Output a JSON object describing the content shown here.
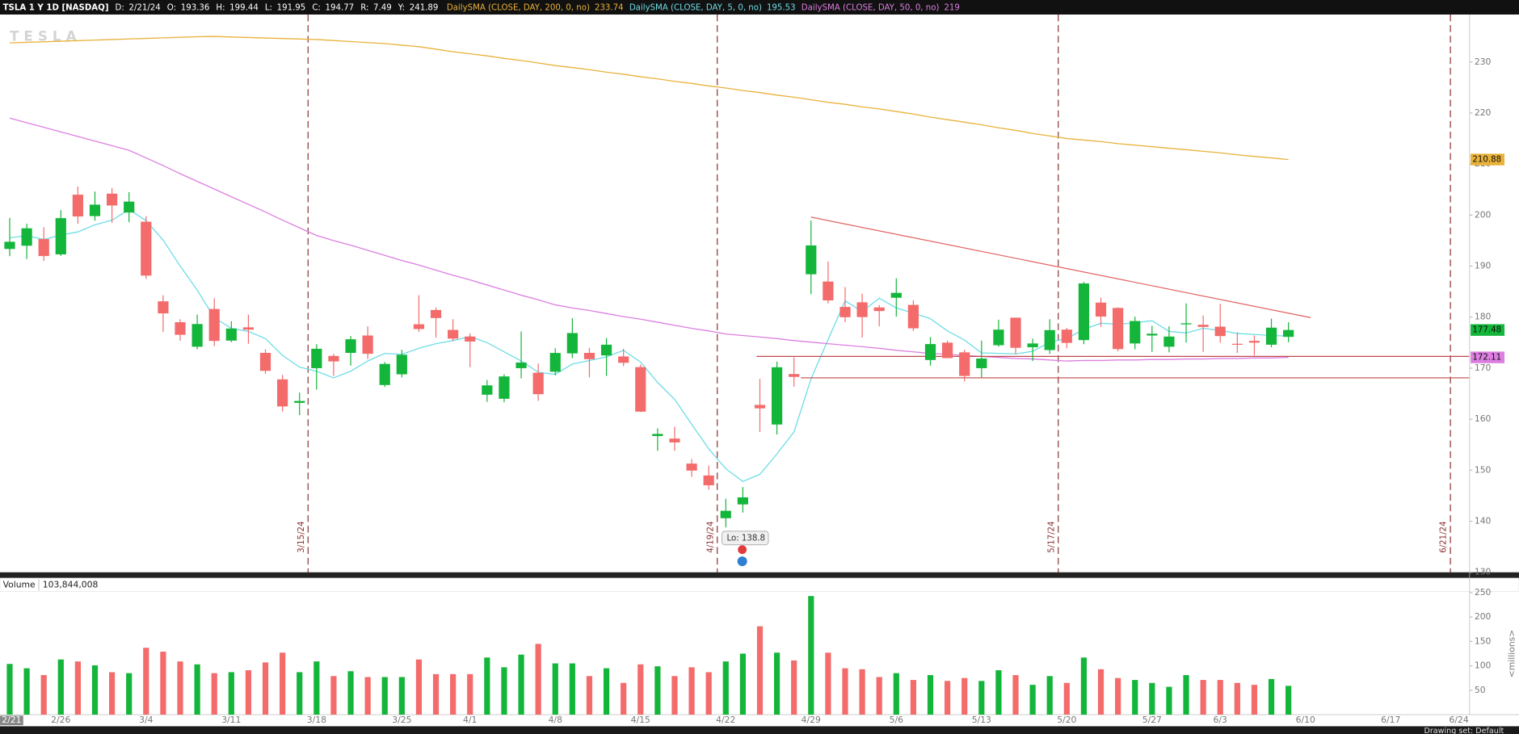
{
  "header": {
    "symbol": "TSLA 1 Y 1D [NASDAQ]",
    "date_label": "D:",
    "date": "2/21/24",
    "open_label": "O:",
    "high_label": "H:",
    "low_label": "L:",
    "close_label": "C:",
    "range": {
      "label": "R:",
      "value": 7.49
    },
    "y": {
      "label": "Y:",
      "value": 241.89
    }
  },
  "watermark": "TESLA",
  "chart_data": {
    "type": "candlestick",
    "title": "TSLA 1 Y 1D [NASDAQ]",
    "categories": [
      "2/21",
      null,
      null,
      "2/26",
      null,
      null,
      null,
      null,
      "3/4",
      null,
      null,
      null,
      null,
      "3/11",
      null,
      null,
      null,
      null,
      "3/18",
      null,
      null,
      null,
      null,
      "3/25",
      null,
      null,
      null,
      "4/1",
      null,
      null,
      null,
      null,
      "4/8",
      null,
      null,
      null,
      null,
      "4/15",
      null,
      null,
      null,
      null,
      "4/22",
      null,
      null,
      null,
      null,
      "4/29",
      null,
      null,
      null,
      null,
      "5/6",
      null,
      null,
      null,
      null,
      "5/13",
      null,
      null,
      null,
      null,
      "5/20",
      null,
      null,
      null,
      null,
      "5/27",
      null,
      null,
      null,
      "6/3",
      null,
      null,
      null,
      null,
      "6/10",
      null,
      null,
      null,
      null,
      "6/17",
      null,
      null,
      null,
      "6/24"
    ],
    "open": [
      193.36,
      194.0,
      195.3,
      192.3,
      204.0,
      199.8,
      204.2,
      200.5,
      198.7,
      183.1,
      179.0,
      174.2,
      181.6,
      175.4,
      178.0,
      173.0,
      167.8,
      163.2,
      170.0,
      172.4,
      173.0,
      176.4,
      166.7,
      168.8,
      178.6,
      181.4,
      177.5,
      176.2,
      164.8,
      164.0,
      170.0,
      169.1,
      169.3,
      172.9,
      173.0,
      172.5,
      172.3,
      170.2,
      156.7,
      156.2,
      151.3,
      148.97,
      140.6,
      143.3,
      162.8,
      158.96,
      168.85,
      188.4,
      186.98,
      182.0,
      182.9,
      181.9,
      183.8,
      182.4,
      171.6,
      175.0,
      173.1,
      170.0,
      174.5,
      179.9,
      174.1,
      173.55,
      177.56,
      175.5,
      182.85,
      181.8,
      174.84,
      176.4,
      174.2,
      178.58,
      178.5,
      178.13,
      174.78,
      175.35,
      174.6,
      176.13,
      null,
      null,
      null,
      null,
      null,
      null,
      null,
      null,
      null,
      null
    ],
    "high": [
      199.44,
      198.3,
      197.6,
      201.0,
      205.6,
      204.6,
      205.3,
      204.5,
      199.8,
      184.3,
      179.6,
      180.5,
      183.7,
      179.2,
      180.5,
      173.7,
      168.7,
      165.2,
      174.7,
      172.8,
      176.3,
      178.2,
      171.2,
      173.6,
      184.3,
      181.9,
      179.6,
      176.8,
      167.7,
      168.8,
      177.2,
      170.9,
      173.9,
      179.8,
      174.0,
      175.9,
      173.8,
      170.7,
      158.2,
      158.5,
      152.2,
      150.9,
      144.4,
      146.7,
      167.9,
      171.3,
      172.1,
      198.9,
      190.9,
      185.9,
      184.6,
      182.4,
      187.6,
      183.3,
      176.1,
      175.4,
      173.6,
      175.4,
      179.5,
      179.9,
      175.8,
      179.6,
      177.9,
      186.9,
      183.8,
      181.9,
      180.1,
      178.3,
      178.2,
      182.7,
      180.3,
      182.6,
      177.0,
      176.4,
      179.7,
      179.0,
      null,
      null,
      null,
      null,
      null,
      null,
      null,
      null,
      null,
      null
    ],
    "low": [
      191.95,
      191.4,
      191.0,
      192.0,
      198.3,
      198.9,
      198.5,
      198.6,
      187.5,
      177.1,
      175.4,
      173.7,
      174.3,
      175.1,
      174.8,
      168.9,
      161.5,
      160.8,
      165.8,
      168.5,
      170.5,
      171.8,
      166.3,
      168.2,
      177.1,
      176.0,
      175.3,
      170.2,
      163.4,
      163.3,
      168.0,
      163.6,
      168.6,
      172.0,
      168.2,
      168.5,
      170.4,
      161.4,
      153.8,
      153.8,
      148.7,
      146.2,
      138.8,
      141.7,
      157.5,
      157.0,
      166.4,
      184.5,
      182.7,
      179.0,
      176.0,
      178.2,
      180.1,
      177.3,
      170.5,
      172.7,
      167.4,
      168.2,
      174.2,
      172.8,
      171.4,
      172.8,
      173.9,
      174.7,
      178.1,
      173.3,
      173.7,
      173.2,
      173.1,
      175.0,
      173.2,
      175.0,
      173.0,
      172.5,
      174.1,
      175.1,
      null,
      null,
      null,
      null,
      null,
      null,
      null,
      null,
      null,
      null
    ],
    "close": [
      194.77,
      197.41,
      191.97,
      199.4,
      199.73,
      202.04,
      201.88,
      202.64,
      188.14,
      180.74,
      176.54,
      178.65,
      175.34,
      177.77,
      177.54,
      169.48,
      162.5,
      163.57,
      173.8,
      171.32,
      175.66,
      172.82,
      170.83,
      172.63,
      177.67,
      179.83,
      175.79,
      175.22,
      166.63,
      168.38,
      171.11,
      164.9,
      172.98,
      176.88,
      171.76,
      174.6,
      171.05,
      161.48,
      157.11,
      155.45,
      149.93,
      147.05,
      142.05,
      144.68,
      162.13,
      170.18,
      168.29,
      194.05,
      183.28,
      179.99,
      180.01,
      181.19,
      184.76,
      177.81,
      174.72,
      171.97,
      168.47,
      171.89,
      177.55,
      173.99,
      174.84,
      177.46,
      174.95,
      186.6,
      180.11,
      173.74,
      179.24,
      176.75,
      176.19,
      178.79,
      178.08,
      176.29,
      174.77,
      175.0,
      177.94,
      177.48,
      null,
      null,
      null,
      null,
      null,
      null,
      null,
      null,
      null,
      null
    ],
    "up_color": "#13b53a",
    "down_color": "#f36b6b",
    "ylim": [
      130,
      239.3
    ],
    "yticks": [
      130,
      140,
      150,
      160,
      170,
      180,
      190,
      200,
      210,
      220,
      230
    ],
    "grid": false,
    "overlays": [
      {
        "name": "DailySMA (CLOSE, DAY, 200, 0, no)",
        "color": "#e8b23a",
        "values": [
          233.74,
          233.85,
          233.96,
          234.07,
          234.18,
          234.29,
          234.4,
          234.51,
          234.62,
          234.73,
          234.84,
          234.95,
          235.0,
          234.9,
          234.8,
          234.7,
          234.6,
          234.5,
          234.4,
          234.2,
          234.0,
          233.8,
          233.6,
          233.3,
          233.0,
          232.5,
          232.0,
          231.6,
          231.2,
          230.7,
          230.3,
          229.8,
          229.3,
          228.9,
          228.5,
          228.0,
          227.6,
          227.1,
          226.7,
          226.2,
          225.8,
          225.3,
          224.9,
          224.4,
          224.0,
          223.5,
          223.1,
          222.6,
          222.1,
          221.7,
          221.2,
          220.8,
          220.3,
          219.8,
          219.2,
          218.7,
          218.2,
          217.7,
          217.1,
          216.6,
          216.0,
          215.5,
          215.0,
          214.7,
          214.4,
          214.0,
          213.7,
          213.4,
          213.1,
          212.8,
          212.5,
          212.2,
          211.8,
          211.5,
          211.2,
          210.88,
          null,
          null,
          null,
          null,
          null,
          null,
          null,
          null,
          null,
          null
        ]
      },
      {
        "name": "DailySMA (CLOSE, DAY, 5, 0, no)",
        "color": "#6fdde6",
        "values": [
          195.53,
          196.0,
          195.2,
          196.1,
          196.7,
          198.1,
          199.0,
          201.1,
          198.9,
          195.1,
          190.0,
          185.3,
          179.9,
          177.8,
          177.2,
          175.8,
          172.5,
          170.2,
          169.4,
          168.1,
          169.4,
          171.4,
          172.9,
          172.7,
          173.9,
          174.8,
          175.4,
          176.2,
          175.0,
          173.2,
          171.4,
          169.2,
          168.8,
          170.8,
          171.5,
          172.2,
          173.5,
          171.2,
          167.2,
          163.9,
          159.0,
          154.2,
          150.3,
          147.8,
          149.2,
          153.2,
          157.5,
          167.9,
          175.6,
          183.2,
          181.1,
          183.7,
          181.8,
          180.8,
          179.7,
          177.3,
          175.5,
          173.0,
          172.9,
          172.8,
          173.3,
          175.1,
          175.8,
          177.6,
          178.8,
          178.6,
          178.9,
          179.3,
          177.2,
          176.9,
          177.8,
          177.4,
          176.8,
          176.6,
          176.4,
          176.3,
          null,
          null,
          null,
          null,
          null,
          null,
          null,
          null,
          null,
          null
        ]
      },
      {
        "name": "DailySMA (CLOSE, DAY, 50, 0, no)",
        "color": "#dc7fe0",
        "values": [
          219,
          218.1,
          217.2,
          216.3,
          215.4,
          214.5,
          213.6,
          212.7,
          211.2,
          209.7,
          208.1,
          206.6,
          205.1,
          203.6,
          202.1,
          200.6,
          199.0,
          197.5,
          196.0,
          195.0,
          194.1,
          193.1,
          192.1,
          191.1,
          190.2,
          189.2,
          188.2,
          187.3,
          186.3,
          185.3,
          184.3,
          183.4,
          182.4,
          181.8,
          181.3,
          180.7,
          180.1,
          179.6,
          179.0,
          178.4,
          177.8,
          177.3,
          176.7,
          176.4,
          176.1,
          175.8,
          175.4,
          175.1,
          174.8,
          174.5,
          174.2,
          173.9,
          173.5,
          173.2,
          172.9,
          172.7,
          172.5,
          172.3,
          172.1,
          171.9,
          171.8,
          171.6,
          171.4,
          171.5,
          171.5,
          171.6,
          171.6,
          171.7,
          171.7,
          171.8,
          171.8,
          171.9,
          171.9,
          172.0,
          172.0,
          172.11,
          null,
          null,
          null,
          null,
          null,
          null,
          null,
          null,
          null,
          null
        ]
      }
    ],
    "events": [
      {
        "label": "3/15/24",
        "at": 17
      },
      {
        "label": "4/19/24",
        "at": 41
      },
      {
        "label": "5/17/24",
        "at": 61
      },
      {
        "label": "6/21/24",
        "at": 84
      }
    ],
    "drawings": [
      {
        "color": "#e06060",
        "from": [
          47,
          199.6
        ],
        "to": [
          76.3,
          179.9
        ]
      },
      {
        "color": "#c04848",
        "from": [
          43.8,
          172.3
        ],
        "to": [
          85.6,
          172.3
        ]
      },
      {
        "color": "#c04848",
        "from": [
          46.4,
          168.1
        ],
        "to": [
          85.6,
          168.1
        ]
      }
    ],
    "low_annotation": "Lo: 138.8",
    "volume": {
      "title": "Volume",
      "current": "103,844,008",
      "unit": "<millions>",
      "values": [
        103.84,
        95,
        81,
        113,
        109,
        101,
        87,
        85,
        137,
        129,
        109,
        103,
        85,
        87,
        91,
        107,
        127,
        87,
        109,
        79,
        89,
        77,
        77,
        77,
        113,
        83,
        83,
        83,
        117,
        97,
        123,
        145,
        105,
        105,
        79,
        95,
        65,
        103,
        99,
        79,
        97,
        87,
        109,
        125,
        181,
        127,
        111,
        243,
        127,
        95,
        93,
        77,
        85,
        71,
        81,
        69,
        75,
        69,
        91,
        81,
        61,
        79,
        65,
        117,
        93,
        75,
        71,
        65,
        57,
        81,
        71,
        71,
        65,
        61,
        73,
        59,
        null,
        null,
        null,
        null,
        null,
        null,
        null,
        null,
        null,
        null
      ],
      "ylim": [
        0,
        252
      ],
      "yticks": [
        50,
        100,
        150,
        200,
        250
      ]
    }
  },
  "footer": {
    "drawing_set": "Drawing set: Default"
  }
}
